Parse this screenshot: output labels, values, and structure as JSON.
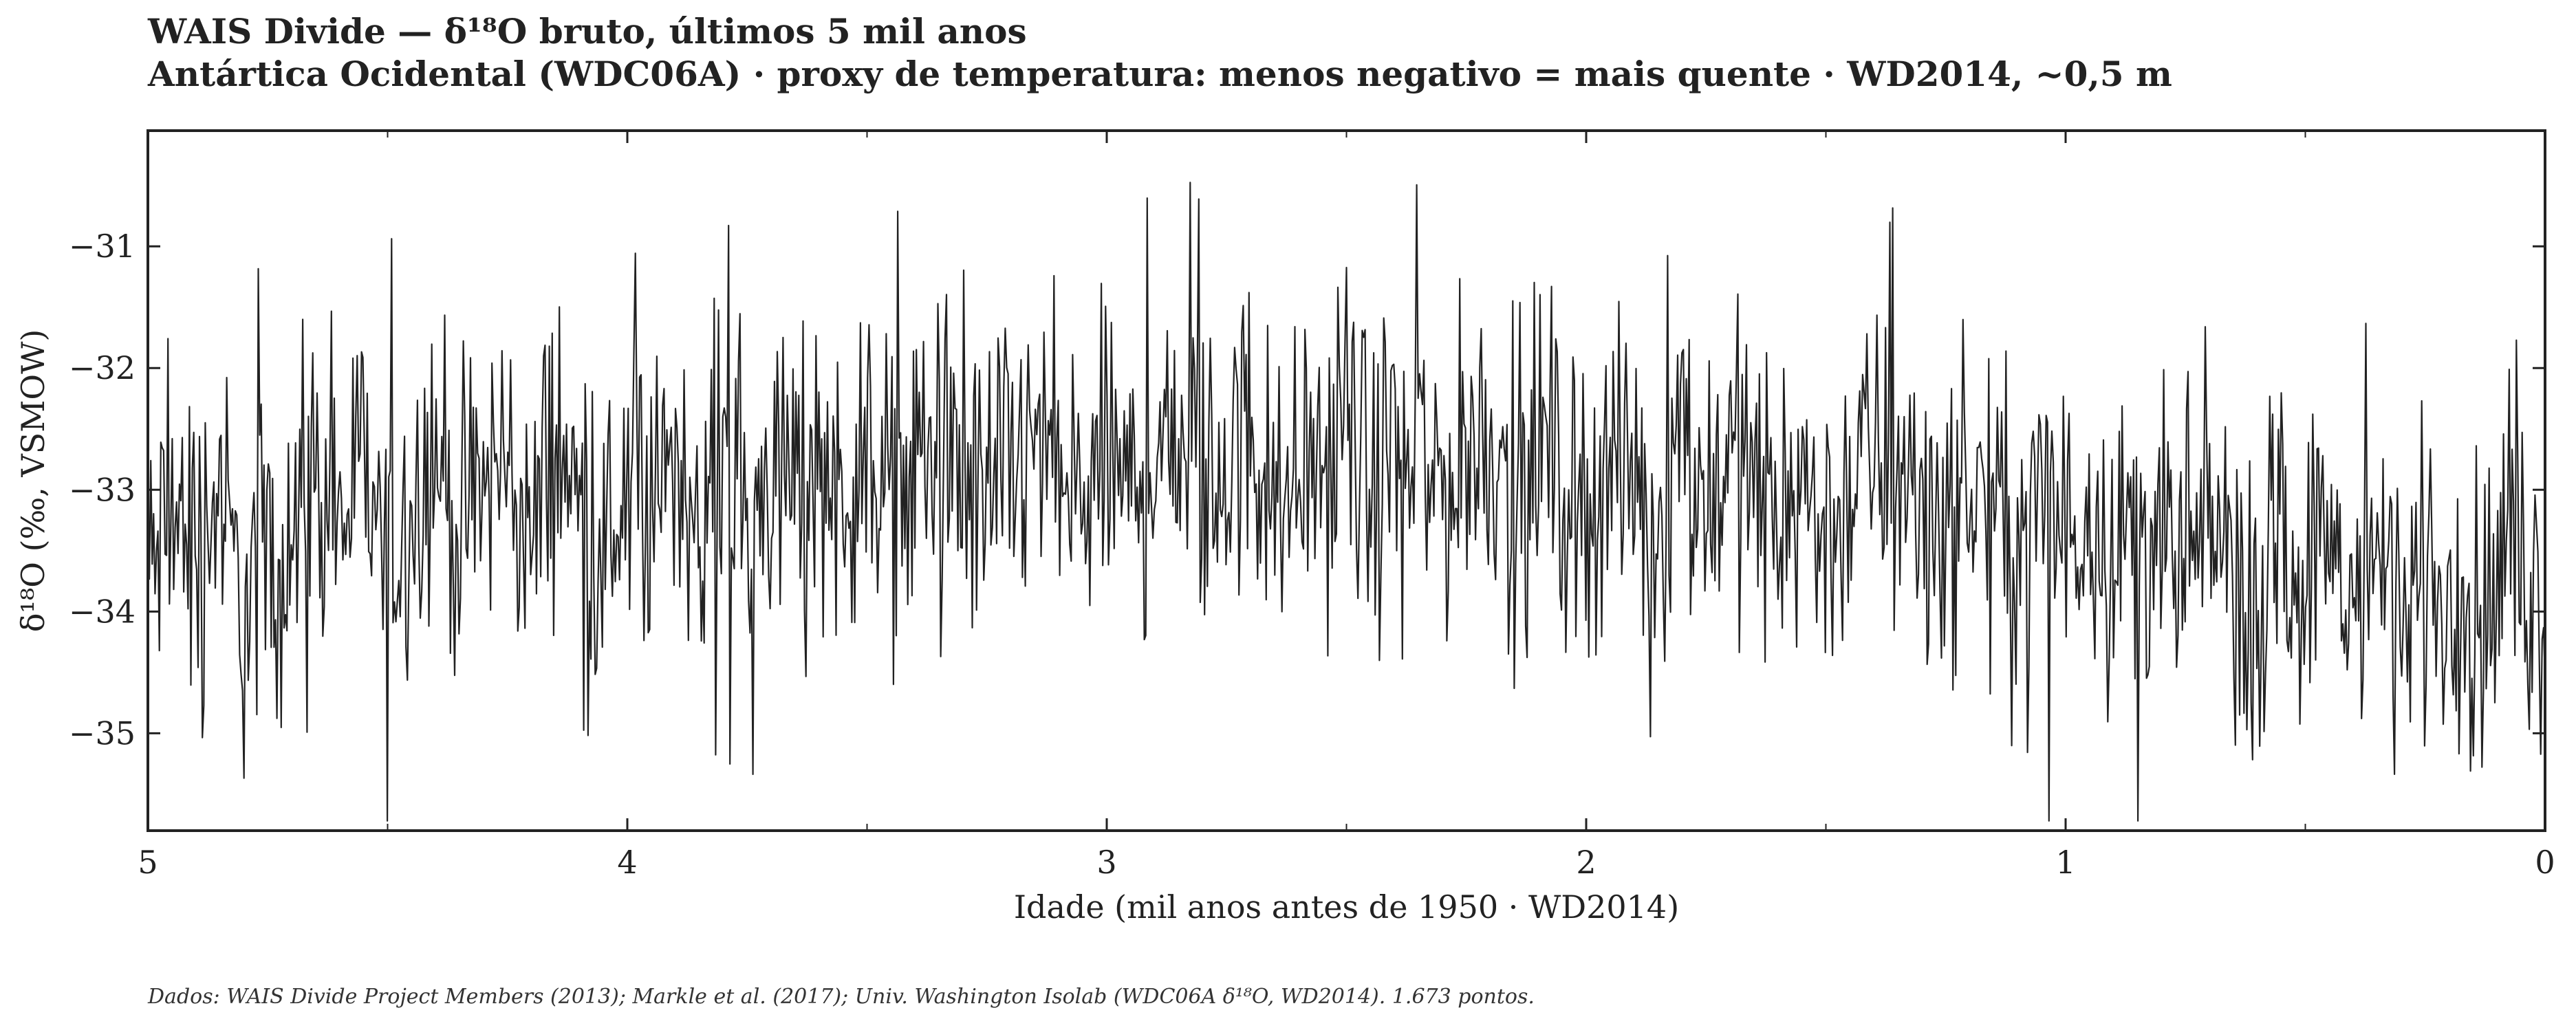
{
  "title": "WAIS Divide — δ¹⁸O bruto, últimos 5 mil anos",
  "subtitle": "Antártica Ocidental (WDC06A) · proxy de temperatura: menos negativo = mais quente · WD2014, ~0,5 m",
  "footnote": "Dados: WAIS Divide Project Members (2013); Markle et al. (2017); Univ. Washington Isolab (WDC06A δ¹⁸O, WD2014). 1.673 pontos.",
  "colors": {
    "line": "#222222",
    "axis": "#222222"
  },
  "chart_data": {
    "type": "line",
    "title": "WAIS Divide — δ¹⁸O bruto, últimos 5 mil anos",
    "subtitle": "Antártica Ocidental (WDC06A) · proxy de temperatura: menos negativo = mais quente · WD2014, ~0,5 m",
    "xlabel": "Idade (mil anos antes de 1950 · WD2014)",
    "ylabel": "δ¹⁸O (‰, VSMOW)",
    "xlim": [
      5,
      0
    ],
    "ylim": [
      -35.8,
      -30.05
    ],
    "x_reversed": true,
    "x_ticks": [
      5,
      4,
      3,
      2,
      1,
      0
    ],
    "x_tick_labels": [
      "5",
      "4",
      "3",
      "2",
      "1",
      "0"
    ],
    "y_ticks": [
      -31,
      -32,
      -33,
      -34,
      -35
    ],
    "y_tick_labels": [
      "−31",
      "−32",
      "−33",
      "−34",
      "−35"
    ],
    "grid": false,
    "series": [
      {
        "x": [
          5.0,
          4.95,
          4.9,
          4.85,
          4.8,
          4.75,
          4.7,
          4.65,
          4.6,
          4.55,
          4.5,
          4.45,
          4.4,
          4.35,
          4.3,
          4.25,
          4.2,
          4.15,
          4.1,
          4.05,
          4.0,
          3.95,
          3.9,
          3.85,
          3.8,
          3.75,
          3.7,
          3.65,
          3.6,
          3.55,
          3.5,
          3.45,
          3.4,
          3.35,
          3.3,
          3.25,
          3.2,
          3.15,
          3.1,
          3.05,
          3.0,
          2.95,
          2.9,
          2.85,
          2.8,
          2.75,
          2.7,
          2.65,
          2.6,
          2.55,
          2.5,
          2.45,
          2.4,
          2.35,
          2.3,
          2.25,
          2.2,
          2.15,
          2.1,
          2.05,
          2.0,
          1.95,
          1.9,
          1.85,
          1.8,
          1.75,
          1.7,
          1.65,
          1.6,
          1.55,
          1.5,
          1.45,
          1.4,
          1.35,
          1.3,
          1.25,
          1.2,
          1.15,
          1.1,
          1.05,
          1.0,
          0.95,
          0.9,
          0.85,
          0.8,
          0.75,
          0.7,
          0.65,
          0.6,
          0.55,
          0.5,
          0.45,
          0.4,
          0.35,
          0.3,
          0.25,
          0.2,
          0.15,
          0.1,
          0.05,
          0.0
        ],
        "y": [
          -33.8,
          -33.2,
          -33.5,
          -33.0,
          -34.1,
          -33.4,
          -33.6,
          -32.9,
          -33.3,
          -32.8,
          -33.7,
          -33.1,
          -32.6,
          -33.4,
          -33.0,
          -32.7,
          -33.5,
          -32.5,
          -33.2,
          -33.6,
          -32.9,
          -33.3,
          -32.7,
          -33.1,
          -32.5,
          -33.4,
          -32.8,
          -33.0,
          -32.6,
          -33.2,
          -32.4,
          -33.1,
          -32.9,
          -32.5,
          -33.3,
          -32.8,
          -33.0,
          -32.6,
          -32.9,
          -33.2,
          -32.7,
          -33.1,
          -32.6,
          -32.4,
          -33.0,
          -32.8,
          -32.5,
          -33.2,
          -32.7,
          -32.9,
          -32.4,
          -33.1,
          -32.6,
          -32.8,
          -33.0,
          -32.7,
          -32.5,
          -33.1,
          -32.6,
          -32.9,
          -33.2,
          -32.7,
          -33.0,
          -33.3,
          -32.8,
          -33.1,
          -32.6,
          -33.0,
          -33.2,
          -32.9,
          -33.4,
          -33.0,
          -32.7,
          -33.1,
          -32.9,
          -33.3,
          -33.0,
          -33.2,
          -33.5,
          -33.1,
          -33.4,
          -33.0,
          -33.6,
          -33.2,
          -33.5,
          -33.8,
          -33.3,
          -33.6,
          -33.9,
          -33.4,
          -33.7,
          -33.5,
          -33.9,
          -33.6,
          -34.0,
          -33.7,
          -33.9,
          -34.1,
          -33.8,
          -33.6,
          -34.0
        ]
      }
    ]
  }
}
